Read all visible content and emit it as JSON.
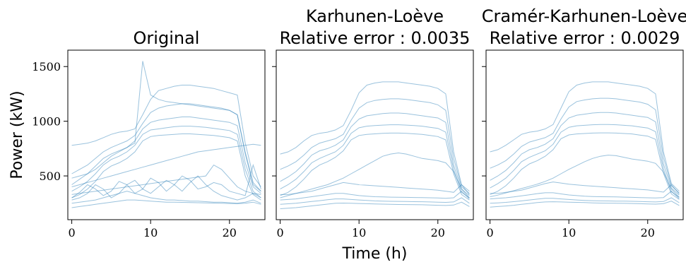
{
  "chart_data": [
    {
      "type": "line",
      "title": "Original",
      "subtitle": "",
      "xlabel": "",
      "ylabel": "Power (kW)",
      "xlim": [
        -0.5,
        24.5
      ],
      "ylim": [
        100,
        1650
      ],
      "xticks": [
        0,
        10,
        20
      ],
      "yticks": [
        500,
        1000,
        1500
      ],
      "color": "#1f77b4",
      "grid": false,
      "x": [
        0,
        1,
        2,
        3,
        4,
        5,
        6,
        7,
        8,
        9,
        10,
        11,
        12,
        13,
        14,
        15,
        16,
        17,
        18,
        19,
        20,
        21,
        22,
        23,
        24
      ],
      "series": [
        {
          "values": [
            780,
            790,
            800,
            820,
            850,
            880,
            900,
            910,
            930,
            1060,
            1200,
            1280,
            1300,
            1320,
            1330,
            1330,
            1320,
            1310,
            1300,
            1280,
            1260,
            1240,
            800,
            500,
            400
          ]
        },
        {
          "values": [
            520,
            560,
            600,
            660,
            720,
            760,
            790,
            820,
            870,
            980,
            1080,
            1120,
            1140,
            1150,
            1160,
            1160,
            1150,
            1140,
            1130,
            1120,
            1100,
            1060,
            720,
            440,
            360
          ]
        },
        {
          "values": [
            420,
            470,
            520,
            590,
            660,
            700,
            730,
            760,
            820,
            930,
            990,
            1010,
            1020,
            1030,
            1040,
            1040,
            1030,
            1020,
            1010,
            1000,
            990,
            960,
            620,
            400,
            340
          ]
        },
        {
          "values": [
            360,
            400,
            450,
            520,
            600,
            650,
            680,
            720,
            780,
            880,
            920,
            930,
            940,
            950,
            955,
            955,
            950,
            945,
            935,
            925,
            915,
            880,
            560,
            360,
            300
          ]
        },
        {
          "values": [
            300,
            330,
            380,
            450,
            540,
            590,
            620,
            660,
            720,
            820,
            860,
            870,
            875,
            880,
            885,
            885,
            880,
            875,
            870,
            860,
            850,
            820,
            500,
            330,
            280
          ]
        },
        {
          "values": [
            480,
            500,
            520,
            560,
            620,
            680,
            720,
            760,
            800,
            1550,
            1240,
            1200,
            1180,
            1170,
            1160,
            1150,
            1140,
            1130,
            1120,
            1110,
            1100,
            1060,
            700,
            420,
            360
          ]
        },
        {
          "values": [
            400,
            420,
            440,
            460,
            480,
            500,
            520,
            540,
            560,
            580,
            600,
            620,
            640,
            660,
            680,
            700,
            720,
            730,
            740,
            750,
            760,
            770,
            780,
            790,
            780
          ]
        },
        {
          "values": [
            300,
            350,
            420,
            380,
            320,
            360,
            450,
            420,
            340,
            380,
            480,
            440,
            360,
            420,
            500,
            460,
            380,
            400,
            440,
            420,
            360,
            340,
            320,
            600,
            380
          ]
        },
        {
          "values": [
            280,
            300,
            340,
            420,
            380,
            300,
            340,
            420,
            460,
            380,
            340,
            400,
            460,
            420,
            360,
            440,
            500,
            420,
            360,
            320,
            300,
            280,
            300,
            340,
            300
          ]
        },
        {
          "values": [
            250,
            260,
            270,
            280,
            300,
            320,
            340,
            360,
            340,
            320,
            300,
            290,
            280,
            280,
            275,
            270,
            270,
            265,
            260,
            260,
            255,
            250,
            260,
            280,
            250
          ]
        },
        {
          "values": [
            210,
            220,
            230,
            240,
            250,
            260,
            270,
            280,
            280,
            275,
            270,
            265,
            260,
            260,
            258,
            256,
            255,
            254,
            252,
            250,
            248,
            246,
            250,
            260,
            240
          ]
        },
        {
          "values": [
            330,
            340,
            350,
            360,
            370,
            380,
            390,
            400,
            410,
            420,
            430,
            440,
            450,
            460,
            470,
            480,
            490,
            500,
            600,
            560,
            480,
            400,
            360,
            340,
            330
          ]
        }
      ]
    },
    {
      "type": "line",
      "title": "Karhunen-Loève",
      "subtitle": "Relative error : 0.0035",
      "xlabel": "Time (h)",
      "ylabel": "",
      "xlim": [
        -0.5,
        24.5
      ],
      "ylim": [
        100,
        1650
      ],
      "xticks": [
        0,
        10,
        20
      ],
      "yticks": [
        500,
        1000,
        1500
      ],
      "color": "#1f77b4",
      "grid": false,
      "x": [
        0,
        1,
        2,
        3,
        4,
        5,
        6,
        7,
        8,
        9,
        10,
        11,
        12,
        13,
        14,
        15,
        16,
        17,
        18,
        19,
        20,
        21,
        22,
        23,
        24
      ],
      "series": [
        {
          "values": [
            700,
            720,
            760,
            820,
            870,
            890,
            900,
            920,
            960,
            1100,
            1260,
            1330,
            1350,
            1360,
            1360,
            1360,
            1350,
            1340,
            1330,
            1320,
            1300,
            1250,
            720,
            420,
            360
          ]
        },
        {
          "values": [
            560,
            590,
            630,
            690,
            760,
            800,
            820,
            840,
            880,
            1010,
            1120,
            1170,
            1190,
            1200,
            1205,
            1205,
            1200,
            1190,
            1180,
            1170,
            1150,
            1100,
            660,
            400,
            340
          ]
        },
        {
          "values": [
            450,
            490,
            540,
            610,
            690,
            730,
            750,
            780,
            830,
            950,
            1020,
            1050,
            1060,
            1070,
            1075,
            1075,
            1070,
            1060,
            1050,
            1040,
            1030,
            990,
            600,
            380,
            320
          ]
        },
        {
          "values": [
            380,
            420,
            470,
            540,
            620,
            660,
            690,
            720,
            780,
            890,
            940,
            955,
            960,
            965,
            968,
            968,
            965,
            960,
            955,
            945,
            935,
            900,
            560,
            350,
            300
          ]
        },
        {
          "values": [
            320,
            350,
            400,
            470,
            550,
            600,
            630,
            670,
            730,
            830,
            870,
            880,
            885,
            890,
            892,
            892,
            890,
            885,
            880,
            870,
            860,
            830,
            520,
            330,
            280
          ]
        },
        {
          "values": [
            300,
            320,
            340,
            360,
            380,
            400,
            420,
            450,
            480,
            520,
            560,
            600,
            640,
            680,
            700,
            710,
            700,
            680,
            660,
            650,
            640,
            620,
            540,
            380,
            300
          ]
        },
        {
          "values": [
            330,
            330,
            340,
            350,
            360,
            380,
            400,
            420,
            440,
            430,
            420,
            415,
            410,
            405,
            400,
            395,
            390,
            385,
            380,
            375,
            370,
            360,
            350,
            420,
            330
          ]
        },
        {
          "values": [
            280,
            285,
            290,
            300,
            310,
            320,
            330,
            340,
            340,
            330,
            320,
            315,
            310,
            308,
            306,
            305,
            304,
            303,
            302,
            300,
            298,
            296,
            300,
            360,
            290
          ]
        },
        {
          "values": [
            240,
            245,
            250,
            258,
            266,
            274,
            282,
            290,
            290,
            285,
            280,
            276,
            272,
            270,
            268,
            267,
            266,
            265,
            264,
            262,
            260,
            258,
            262,
            300,
            250
          ]
        },
        {
          "values": [
            200,
            205,
            210,
            218,
            226,
            234,
            242,
            250,
            252,
            250,
            248,
            246,
            244,
            242,
            240,
            239,
            238,
            237,
            236,
            234,
            232,
            230,
            234,
            260,
            220
          ]
        }
      ]
    },
    {
      "type": "line",
      "title": "Cramér-Karhunen-Loève",
      "subtitle": "Relative error : 0.0029",
      "xlabel": "",
      "ylabel": "",
      "xlim": [
        -0.5,
        24.5
      ],
      "ylim": [
        100,
        1650
      ],
      "xticks": [
        0,
        10,
        20
      ],
      "yticks": [
        500,
        1000,
        1500
      ],
      "color": "#1f77b4",
      "grid": false,
      "x": [
        0,
        1,
        2,
        3,
        4,
        5,
        6,
        7,
        8,
        9,
        10,
        11,
        12,
        13,
        14,
        15,
        16,
        17,
        18,
        19,
        20,
        21,
        22,
        23,
        24
      ],
      "series": [
        {
          "values": [
            720,
            740,
            780,
            830,
            880,
            900,
            910,
            930,
            970,
            1120,
            1270,
            1330,
            1350,
            1360,
            1360,
            1360,
            1350,
            1340,
            1330,
            1320,
            1300,
            1250,
            720,
            430,
            360
          ]
        },
        {
          "values": [
            570,
            600,
            640,
            700,
            770,
            810,
            830,
            850,
            890,
            1020,
            1130,
            1180,
            1195,
            1205,
            1210,
            1210,
            1205,
            1195,
            1185,
            1175,
            1155,
            1105,
            670,
            410,
            345
          ]
        },
        {
          "values": [
            460,
            500,
            550,
            620,
            700,
            740,
            760,
            790,
            840,
            960,
            1030,
            1055,
            1065,
            1075,
            1080,
            1080,
            1075,
            1065,
            1055,
            1045,
            1035,
            995,
            610,
            390,
            325
          ]
        },
        {
          "values": [
            390,
            430,
            480,
            550,
            630,
            670,
            700,
            730,
            790,
            900,
            945,
            958,
            963,
            968,
            970,
            970,
            968,
            963,
            958,
            948,
            938,
            905,
            565,
            355,
            305
          ]
        },
        {
          "values": [
            330,
            360,
            410,
            480,
            560,
            610,
            640,
            680,
            740,
            840,
            875,
            884,
            888,
            892,
            894,
            894,
            892,
            888,
            884,
            874,
            864,
            834,
            525,
            335,
            285
          ]
        },
        {
          "values": [
            310,
            325,
            345,
            365,
            385,
            405,
            425,
            450,
            480,
            520,
            560,
            595,
            630,
            660,
            680,
            690,
            685,
            670,
            655,
            645,
            635,
            615,
            535,
            380,
            305
          ]
        },
        {
          "values": [
            340,
            340,
            350,
            360,
            370,
            390,
            410,
            430,
            445,
            435,
            425,
            418,
            412,
            407,
            402,
            397,
            392,
            387,
            382,
            377,
            372,
            362,
            352,
            420,
            335
          ]
        },
        {
          "values": [
            290,
            295,
            300,
            308,
            318,
            328,
            338,
            346,
            346,
            336,
            326,
            320,
            315,
            312,
            310,
            309,
            308,
            306,
            304,
            302,
            300,
            298,
            302,
            360,
            292
          ]
        },
        {
          "values": [
            250,
            254,
            258,
            265,
            272,
            280,
            288,
            295,
            295,
            290,
            285,
            280,
            276,
            274,
            272,
            271,
            270,
            269,
            268,
            266,
            264,
            262,
            266,
            300,
            255
          ]
        },
        {
          "values": [
            215,
            220,
            225,
            232,
            240,
            248,
            256,
            262,
            264,
            262,
            260,
            258,
            256,
            254,
            252,
            251,
            250,
            249,
            248,
            246,
            244,
            242,
            246,
            270,
            230
          ]
        }
      ]
    }
  ]
}
